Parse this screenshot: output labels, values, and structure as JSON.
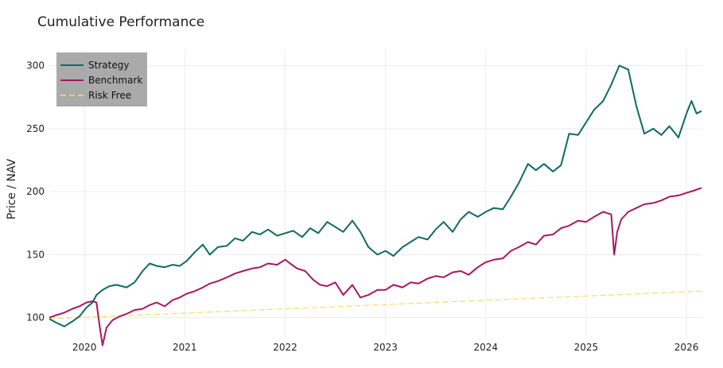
{
  "chart_data": {
    "type": "line",
    "title": "Cumulative Performance",
    "xlabel": "",
    "ylabel": "Price / NAV",
    "x_ticks": [
      "2020",
      "2021",
      "2022",
      "2023",
      "2024",
      "2025",
      "2026"
    ],
    "y_ticks": [
      100,
      150,
      200,
      250,
      300
    ],
    "xlim": [
      2019.65,
      2026.15
    ],
    "ylim": [
      84,
      313
    ],
    "grid": true,
    "legend_position": "top-left",
    "series": [
      {
        "name": "Strategy",
        "color": "#0f6b5f",
        "dash": "solid",
        "x": [
          2019.65,
          2019.72,
          2019.8,
          2019.88,
          2019.95,
          2020.02,
          2020.08,
          2020.12,
          2020.18,
          2020.25,
          2020.32,
          2020.42,
          2020.5,
          2020.58,
          2020.65,
          2020.72,
          2020.8,
          2020.88,
          2020.95,
          2021.02,
          2021.1,
          2021.18,
          2021.25,
          2021.33,
          2021.42,
          2021.5,
          2021.58,
          2021.67,
          2021.75,
          2021.83,
          2021.92,
          2022.0,
          2022.08,
          2022.17,
          2022.25,
          2022.33,
          2022.42,
          2022.5,
          2022.58,
          2022.67,
          2022.75,
          2022.83,
          2022.92,
          2023.0,
          2023.08,
          2023.17,
          2023.25,
          2023.33,
          2023.42,
          2023.5,
          2023.58,
          2023.67,
          2023.75,
          2023.83,
          2023.92,
          2024.0,
          2024.08,
          2024.17,
          2024.25,
          2024.33,
          2024.42,
          2024.5,
          2024.58,
          2024.67,
          2024.75,
          2024.83,
          2024.92,
          2025.0,
          2025.08,
          2025.17,
          2025.25,
          2025.33,
          2025.42,
          2025.5,
          2025.58,
          2025.67,
          2025.75,
          2025.83,
          2025.92,
          2026.0,
          2026.05,
          2026.1,
          2026.15
        ],
        "values": [
          99,
          96,
          93,
          97,
          101,
          108,
          112,
          118,
          122,
          125,
          126,
          124,
          128,
          137,
          143,
          141,
          140,
          142,
          141,
          145,
          152,
          158,
          150,
          156,
          157,
          163,
          161,
          168,
          166,
          170,
          165,
          167,
          169,
          164,
          171,
          167,
          176,
          172,
          168,
          177,
          168,
          156,
          150,
          153,
          149,
          156,
          160,
          164,
          162,
          170,
          176,
          168,
          178,
          184,
          180,
          184,
          187,
          186,
          196,
          207,
          222,
          217,
          222,
          216,
          221,
          246,
          245,
          255,
          265,
          272,
          285,
          300,
          297,
          268,
          246,
          250,
          245,
          252,
          243,
          262,
          272,
          262,
          264
        ]
      },
      {
        "name": "Benchmark",
        "color": "#a8185f",
        "dash": "solid",
        "x": [
          2019.65,
          2019.72,
          2019.8,
          2019.88,
          2019.95,
          2020.02,
          2020.08,
          2020.12,
          2020.15,
          2020.18,
          2020.22,
          2020.28,
          2020.35,
          2020.42,
          2020.5,
          2020.58,
          2020.65,
          2020.72,
          2020.8,
          2020.88,
          2020.95,
          2021.02,
          2021.1,
          2021.18,
          2021.25,
          2021.33,
          2021.42,
          2021.5,
          2021.58,
          2021.67,
          2021.75,
          2021.83,
          2021.92,
          2022.0,
          2022.05,
          2022.12,
          2022.2,
          2022.28,
          2022.35,
          2022.42,
          2022.5,
          2022.58,
          2022.67,
          2022.75,
          2022.83,
          2022.92,
          2023.0,
          2023.08,
          2023.17,
          2023.25,
          2023.33,
          2023.42,
          2023.5,
          2023.58,
          2023.67,
          2023.75,
          2023.83,
          2023.92,
          2024.0,
          2024.08,
          2024.17,
          2024.25,
          2024.33,
          2024.42,
          2024.5,
          2024.58,
          2024.67,
          2024.75,
          2024.83,
          2024.92,
          2025.0,
          2025.08,
          2025.17,
          2025.25,
          2025.28,
          2025.31,
          2025.35,
          2025.42,
          2025.5,
          2025.58,
          2025.67,
          2025.75,
          2025.83,
          2025.92,
          2026.0,
          2026.08,
          2026.15
        ],
        "values": [
          100,
          102,
          104,
          107,
          109,
          112,
          113,
          112,
          94,
          78,
          92,
          98,
          101,
          103,
          106,
          107,
          110,
          112,
          109,
          114,
          116,
          119,
          121,
          124,
          127,
          129,
          132,
          135,
          137,
          139,
          140,
          143,
          142,
          146,
          143,
          139,
          137,
          130,
          126,
          125,
          128,
          118,
          126,
          116,
          118,
          122,
          122,
          126,
          124,
          128,
          127,
          131,
          133,
          132,
          136,
          137,
          134,
          140,
          144,
          146,
          147,
          153,
          156,
          160,
          158,
          165,
          166,
          171,
          173,
          177,
          176,
          180,
          184,
          182,
          150,
          168,
          178,
          184,
          187,
          190,
          191,
          193,
          196,
          197,
          199,
          201,
          203
        ]
      },
      {
        "name": "Risk Free",
        "color": "#ffd966",
        "dash": "dashed",
        "x": [
          2019.65,
          2026.15
        ],
        "values": [
          99,
          121
        ]
      }
    ]
  }
}
